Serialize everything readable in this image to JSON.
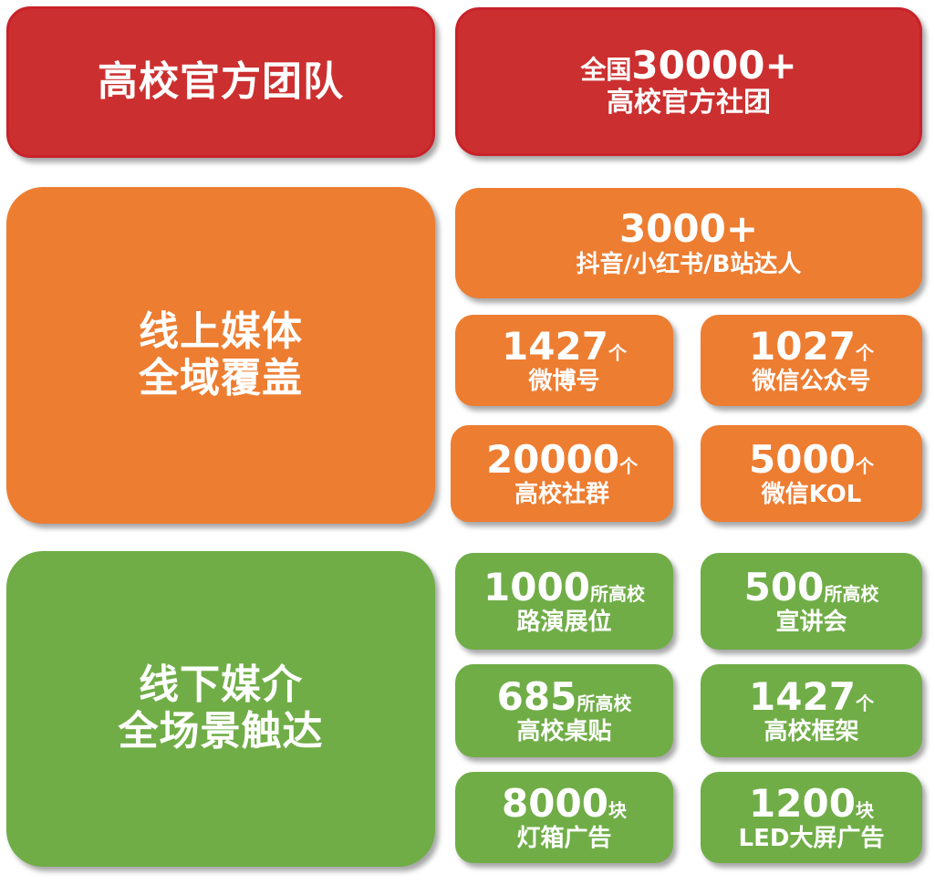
{
  "colors": {
    "red": "#cc2f2f",
    "orange": "#ed7d31",
    "green": "#70ad47"
  },
  "team": {
    "title": "高校官方团队",
    "stat_prefix": "全国",
    "stat_value": "30000+",
    "stat_label": "高校官方社团"
  },
  "online": {
    "title_line1": "线上媒体",
    "title_line2": "全域覆盖",
    "top": {
      "value": "3000+",
      "label": "抖音/小红书/B站达人"
    },
    "items": [
      {
        "value": "1427",
        "unit": "个",
        "label": "微博号"
      },
      {
        "value": "1027",
        "unit": "个",
        "label": "微信公众号"
      },
      {
        "value": "20000",
        "unit": "个",
        "label": "高校社群"
      },
      {
        "value": "5000",
        "unit": "个",
        "label": "微信KOL"
      }
    ]
  },
  "offline": {
    "title_line1": "线下媒介",
    "title_line2": "全场景触达",
    "items": [
      {
        "value": "1000",
        "unit": "所高校",
        "label": "路演展位"
      },
      {
        "value": "500",
        "unit": "所高校",
        "label": "宣讲会"
      },
      {
        "value": "685",
        "unit": "所高校",
        "label": "高校桌贴"
      },
      {
        "value": "1427",
        "unit": "个",
        "label": "高校框架"
      },
      {
        "value": "8000",
        "unit": "块",
        "label": "灯箱广告"
      },
      {
        "value": "1200",
        "unit": "块",
        "label": "LED大屏广告"
      }
    ]
  }
}
